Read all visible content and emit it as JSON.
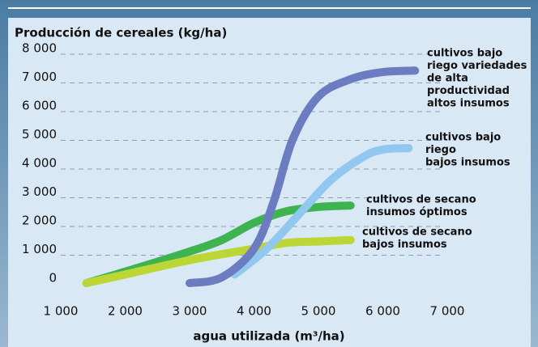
{
  "chart_data": {
    "type": "line",
    "title": "Producción de cereales (kg/ha)",
    "x_label": "agua utilizada (m³/ha)",
    "xlim": [
      1000,
      7000
    ],
    "xticks": [
      {
        "value": 1000,
        "label": "1 000"
      },
      {
        "value": 2000,
        "label": "2 000"
      },
      {
        "value": 3000,
        "label": "3 000"
      },
      {
        "value": 4000,
        "label": "4 000"
      },
      {
        "value": 5000,
        "label": "5 000"
      },
      {
        "value": 6000,
        "label": "6 000"
      },
      {
        "value": 7000,
        "label": "7 000"
      }
    ],
    "ylim": [
      0,
      8000
    ],
    "yticks": [
      0,
      {
        "value": 1000,
        "label": "1 000"
      },
      {
        "value": 2000,
        "label": "2 000"
      },
      {
        "value": 3000,
        "label": "3 000"
      },
      {
        "value": 4000,
        "label": "4 000"
      },
      {
        "value": 5000,
        "label": "5 000"
      },
      {
        "value": 6000,
        "label": "6 000"
      },
      {
        "value": 7000,
        "label": "7 000"
      },
      {
        "value": 8000,
        "label": "8 000"
      }
    ],
    "grid": true,
    "series": [
      {
        "name": [
          "cultivos de secano",
          "insumos óptimos"
        ],
        "color": "#3fb34f",
        "x": [
          1400,
          2000,
          3000,
          3500,
          4000,
          4500,
          5000,
          5500
        ],
        "values": [
          0,
          400,
          1100,
          1500,
          2100,
          2500,
          2650,
          2700
        ]
      },
      {
        "name": [
          "cultivos de secano",
          "bajos insumos"
        ],
        "color": "#bcd636",
        "x": [
          1400,
          2000,
          3000,
          4000,
          4500,
          5000,
          5500
        ],
        "values": [
          0,
          300,
          800,
          1200,
          1400,
          1450,
          1500
        ]
      },
      {
        "name": [
          "cultivos bajo",
          "riego",
          "bajos insumos"
        ],
        "color": "#92c7ef",
        "x": [
          3700,
          4200,
          4700,
          5200,
          5700,
          6000,
          6400
        ],
        "values": [
          300,
          1200,
          2400,
          3600,
          4400,
          4650,
          4700
        ]
      },
      {
        "name": [
          "cultivos bajo",
          "riego variedades",
          "de alta",
          "productividad",
          "altos insumos"
        ],
        "color": "#6b7cc0",
        "x": [
          3000,
          3500,
          4000,
          4300,
          4600,
          5000,
          5500,
          6000,
          6500
        ],
        "values": [
          0,
          200,
          1200,
          2800,
          5000,
          6500,
          7100,
          7350,
          7400
        ]
      }
    ]
  }
}
